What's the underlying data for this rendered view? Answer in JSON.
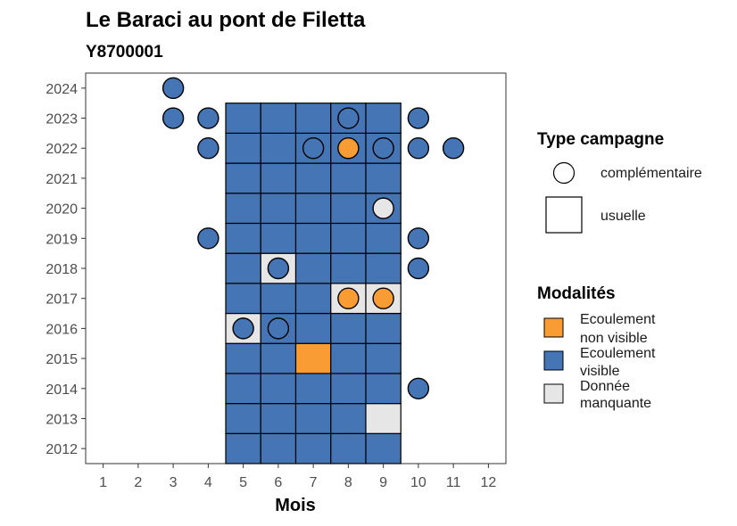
{
  "chart_data": {
    "type": "heatmap",
    "title": "Le Baraci au pont de Filetta",
    "subtitle": "Y8700001",
    "xlabel": "Mois",
    "ylabel": "",
    "x_ticks": [
      1,
      2,
      3,
      4,
      5,
      6,
      7,
      8,
      9,
      10,
      11,
      12
    ],
    "y_ticks": [
      2012,
      2013,
      2014,
      2015,
      2016,
      2017,
      2018,
      2019,
      2020,
      2021,
      2022,
      2023,
      2024
    ],
    "xlim": [
      0.5,
      12.5
    ],
    "ylim": [
      2011.5,
      2024.5
    ],
    "grid": false,
    "legend_position": "right",
    "legends": {
      "campaign": {
        "title": "Type campagne",
        "items": [
          {
            "key": "complementaire",
            "label": "complémentaire",
            "shape": "circle"
          },
          {
            "key": "usuelle",
            "label": "usuelle",
            "shape": "square"
          }
        ]
      },
      "modalite": {
        "title": "Modalités",
        "items": [
          {
            "key": "ENV",
            "label_lines": [
              "Ecoulement",
              "non visible"
            ],
            "color": "#F89C33"
          },
          {
            "key": "EV",
            "label_lines": [
              "Ecoulement",
              "visible"
            ],
            "color": "#4575B4"
          },
          {
            "key": "NA",
            "label_lines": [
              "Donnée",
              "manquante"
            ],
            "color": "#E6E6E6"
          }
        ]
      }
    },
    "colors": {
      "EV": "#4575B4",
      "ENV": "#F89C33",
      "NA": "#E6E6E6"
    },
    "usuelle": [
      {
        "year": 2012,
        "months": [
          5,
          6,
          7,
          8,
          9
        ],
        "values": [
          "EV",
          "EV",
          "EV",
          "EV",
          "EV"
        ]
      },
      {
        "year": 2013,
        "months": [
          5,
          6,
          7,
          8,
          9
        ],
        "values": [
          "EV",
          "EV",
          "EV",
          "EV",
          "NA"
        ]
      },
      {
        "year": 2014,
        "months": [
          5,
          6,
          7,
          8,
          9
        ],
        "values": [
          "EV",
          "EV",
          "EV",
          "EV",
          "EV"
        ]
      },
      {
        "year": 2015,
        "months": [
          5,
          6,
          7,
          8,
          9
        ],
        "values": [
          "EV",
          "EV",
          "ENV",
          "EV",
          "EV"
        ]
      },
      {
        "year": 2016,
        "months": [
          5,
          6,
          7,
          8,
          9
        ],
        "values": [
          "NA",
          "EV",
          "EV",
          "EV",
          "EV"
        ]
      },
      {
        "year": 2017,
        "months": [
          5,
          6,
          7,
          8,
          9
        ],
        "values": [
          "EV",
          "EV",
          "EV",
          "NA",
          "NA"
        ]
      },
      {
        "year": 2018,
        "months": [
          5,
          6,
          7,
          8,
          9
        ],
        "values": [
          "EV",
          "NA",
          "EV",
          "EV",
          "EV"
        ]
      },
      {
        "year": 2019,
        "months": [
          5,
          6,
          7,
          8,
          9
        ],
        "values": [
          "EV",
          "EV",
          "EV",
          "EV",
          "EV"
        ]
      },
      {
        "year": 2020,
        "months": [
          5,
          6,
          7,
          8,
          9
        ],
        "values": [
          "EV",
          "EV",
          "EV",
          "EV",
          "EV"
        ]
      },
      {
        "year": 2021,
        "months": [
          5,
          6,
          7,
          8,
          9
        ],
        "values": [
          "EV",
          "EV",
          "EV",
          "EV",
          "EV"
        ]
      },
      {
        "year": 2022,
        "months": [
          5,
          6,
          7,
          8,
          9
        ],
        "values": [
          "EV",
          "EV",
          "EV",
          "EV",
          "EV"
        ]
      },
      {
        "year": 2023,
        "months": [
          5,
          6,
          7,
          8,
          9
        ],
        "values": [
          "EV",
          "EV",
          "EV",
          "EV",
          "EV"
        ]
      }
    ],
    "complementaire": [
      {
        "year": 2024,
        "month": 3,
        "value": "EV"
      },
      {
        "year": 2023,
        "month": 3,
        "value": "EV"
      },
      {
        "year": 2023,
        "month": 4,
        "value": "EV"
      },
      {
        "year": 2023,
        "month": 8,
        "value": "EV"
      },
      {
        "year": 2023,
        "month": 10,
        "value": "EV"
      },
      {
        "year": 2022,
        "month": 4,
        "value": "EV"
      },
      {
        "year": 2022,
        "month": 7,
        "value": "EV"
      },
      {
        "year": 2022,
        "month": 8,
        "value": "ENV"
      },
      {
        "year": 2022,
        "month": 9,
        "value": "EV"
      },
      {
        "year": 2022,
        "month": 10,
        "value": "EV"
      },
      {
        "year": 2022,
        "month": 11,
        "value": "EV"
      },
      {
        "year": 2020,
        "month": 9,
        "value": "NA"
      },
      {
        "year": 2019,
        "month": 4,
        "value": "EV"
      },
      {
        "year": 2019,
        "month": 10,
        "value": "EV"
      },
      {
        "year": 2018,
        "month": 6,
        "value": "EV"
      },
      {
        "year": 2018,
        "month": 10,
        "value": "EV"
      },
      {
        "year": 2017,
        "month": 8,
        "value": "ENV"
      },
      {
        "year": 2017,
        "month": 9,
        "value": "ENV"
      },
      {
        "year": 2016,
        "month": 5,
        "value": "EV"
      },
      {
        "year": 2016,
        "month": 6,
        "value": "EV"
      },
      {
        "year": 2014,
        "month": 10,
        "value": "EV"
      }
    ]
  }
}
